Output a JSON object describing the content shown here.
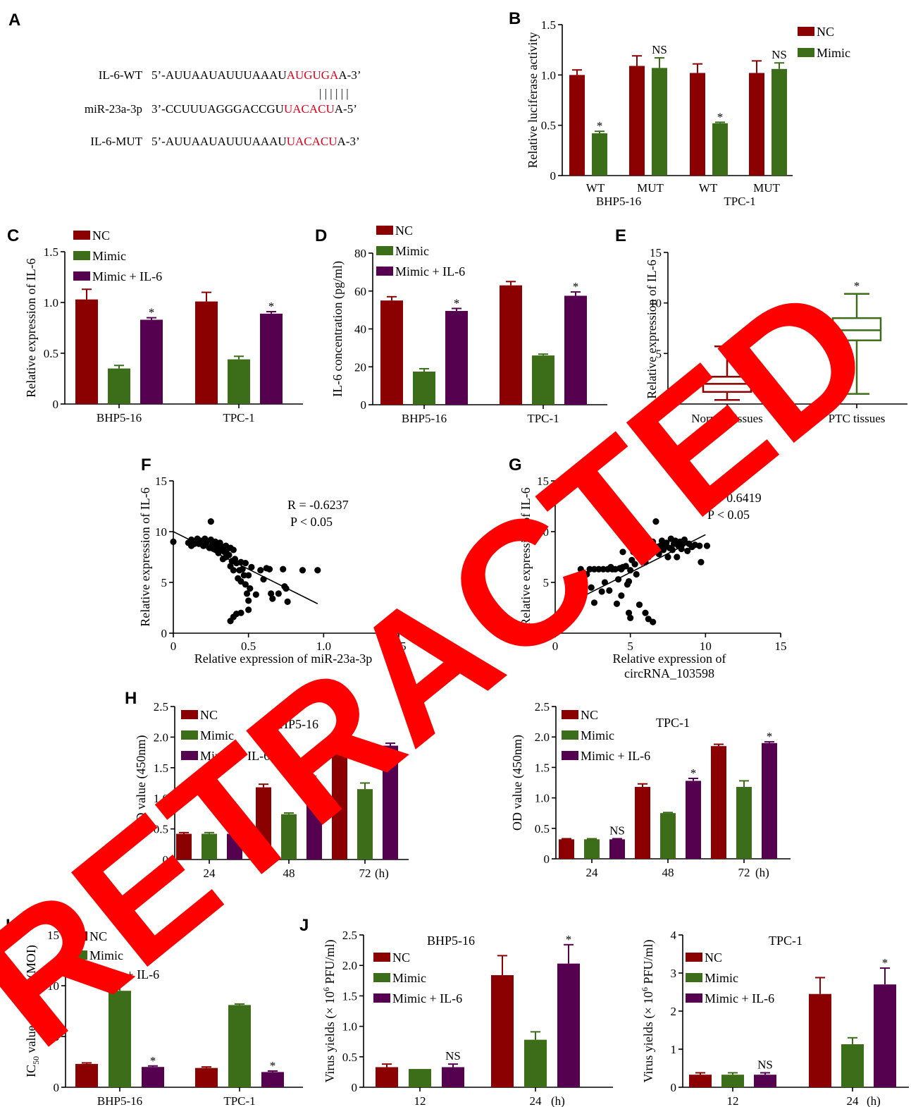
{
  "colors": {
    "NC": "#8b0000",
    "Mimic": "#3c6e1a",
    "Mimic + IL-6": "#560050",
    "box_normal": "#8b0000",
    "box_ptc": "#3c6e1a",
    "highlight": "#e0001b",
    "stamp": "#ff0000"
  },
  "panel_letters": [
    "A",
    "B",
    "C",
    "D",
    "E",
    "F",
    "G",
    "H",
    "I",
    "J"
  ],
  "sequences": {
    "rows": [
      {
        "label": "IL-6-WT",
        "prefix": "5’-AUUAAUAUUUAAAU",
        "highlight": "AUGUGA",
        "suffix": "A-3’"
      },
      {
        "label": "miR-23a-3p",
        "prefix": "3’-CCUUUAGGGACCGU",
        "highlight": "UACACU",
        "suffix": "A-5’"
      },
      {
        "label": "IL-6-MUT",
        "prefix": "5’-AUUAAUAUUUAAAU",
        "highlight": "UACACU",
        "suffix": "A-3’"
      }
    ],
    "pairing": "| | | | | |"
  },
  "stamp_text": "RETRACTED",
  "chart_data": [
    {
      "id": "B",
      "type": "bar",
      "ylabel": "Relative luciferase activity",
      "ylim": [
        0,
        1.5
      ],
      "yticks": [
        "0",
        "0.5",
        "1.0",
        "1.5"
      ],
      "categories": [
        "WT",
        "MUT",
        "WT",
        "MUT"
      ],
      "groups": [
        "BHP5-16",
        "TPC-1"
      ],
      "series": [
        {
          "name": "NC",
          "values": [
            1.0,
            1.09,
            1.02,
            1.02
          ],
          "errors": [
            0.05,
            0.1,
            0.09,
            0.12
          ]
        },
        {
          "name": "Mimic",
          "values": [
            0.42,
            1.07,
            0.52,
            1.06
          ],
          "errors": [
            0.02,
            0.1,
            0.01,
            0.06
          ]
        }
      ],
      "annotations": [
        "*",
        "NS",
        "*",
        "NS"
      ],
      "legend": "top-right"
    },
    {
      "id": "C",
      "type": "bar",
      "ylabel": "Relative expression of IL-6",
      "ylim": [
        0,
        1.5
      ],
      "yticks": [
        "0",
        "0.5",
        "1.0",
        "1.5"
      ],
      "categories": [
        "BHP5-16",
        "TPC-1"
      ],
      "series": [
        {
          "name": "NC",
          "values": [
            1.03,
            1.01
          ],
          "errors": [
            0.1,
            0.09
          ]
        },
        {
          "name": "Mimic",
          "values": [
            0.35,
            0.44
          ],
          "errors": [
            0.03,
            0.03
          ]
        },
        {
          "name": "Mimic + IL-6",
          "values": [
            0.83,
            0.89
          ],
          "errors": [
            0.02,
            0.02
          ]
        }
      ],
      "annotations": [
        "*",
        "*"
      ],
      "legend": "top-left"
    },
    {
      "id": "D",
      "type": "bar",
      "ylabel": "IL-6 concentration (pg/ml)",
      "ylim": [
        0,
        80
      ],
      "yticks": [
        "0",
        "20",
        "40",
        "60",
        "80"
      ],
      "categories": [
        "BHP5-16",
        "TPC-1"
      ],
      "series": [
        {
          "name": "NC",
          "values": [
            55,
            63
          ],
          "errors": [
            2,
            2
          ]
        },
        {
          "name": "Mimic",
          "values": [
            17.5,
            26
          ],
          "errors": [
            1.5,
            0.7
          ]
        },
        {
          "name": "Mimic + IL-6",
          "values": [
            49.5,
            57.5
          ],
          "errors": [
            1.3,
            2
          ]
        }
      ],
      "annotations": [
        "*",
        "*"
      ],
      "legend": "top-left"
    },
    {
      "id": "E",
      "type": "box",
      "ylabel": "Relative expression of IL-6",
      "ylim": [
        0,
        15
      ],
      "yticks": [
        "0",
        "5",
        "10",
        "15"
      ],
      "categories": [
        "Normal tissues",
        "PTC tissues"
      ],
      "boxes": [
        {
          "min": 0.4,
          "q1": 1.2,
          "median": 2.0,
          "q3": 2.7,
          "max": 5.7
        },
        {
          "min": 1.0,
          "q1": 6.3,
          "median": 7.3,
          "q3": 8.5,
          "max": 10.9
        }
      ],
      "annotations": [
        "",
        "*"
      ]
    },
    {
      "id": "F",
      "type": "scatter",
      "xlabel": "Relative expression of  miR-23a-3p",
      "ylabel": "Relative expression of IL-6",
      "xlim": [
        0,
        1.5
      ],
      "ylim": [
        0,
        15
      ],
      "xticks": [
        "0",
        "0.5",
        "1.0",
        "1.5"
      ],
      "yticks": [
        "0",
        "5",
        "10",
        "15"
      ],
      "stats": [
        "R = -0.6237",
        "P < 0.05"
      ],
      "fit": {
        "x": [
          0.0,
          0.96
        ],
        "y": [
          10.0,
          2.9
        ]
      },
      "points": [
        [
          0.0,
          9.0
        ],
        [
          0.1,
          8.9
        ],
        [
          0.12,
          9.2
        ],
        [
          0.12,
          8.6
        ],
        [
          0.14,
          8.8
        ],
        [
          0.16,
          9.3
        ],
        [
          0.17,
          8.8
        ],
        [
          0.18,
          9.1
        ],
        [
          0.2,
          8.6
        ],
        [
          0.21,
          9.3
        ],
        [
          0.22,
          8.9
        ],
        [
          0.24,
          8.4
        ],
        [
          0.25,
          9.2
        ],
        [
          0.25,
          11.0
        ],
        [
          0.26,
          8.7
        ],
        [
          0.27,
          8.3
        ],
        [
          0.28,
          9.0
        ],
        [
          0.29,
          8.5
        ],
        [
          0.3,
          8.7
        ],
        [
          0.3,
          7.9
        ],
        [
          0.31,
          8.9
        ],
        [
          0.32,
          8.2
        ],
        [
          0.33,
          8.5
        ],
        [
          0.33,
          7.3
        ],
        [
          0.34,
          8.0
        ],
        [
          0.35,
          8.6
        ],
        [
          0.35,
          7.5
        ],
        [
          0.36,
          8.3
        ],
        [
          0.37,
          7.7
        ],
        [
          0.38,
          8.4
        ],
        [
          0.38,
          6.6
        ],
        [
          0.39,
          7.1
        ],
        [
          0.4,
          8.2
        ],
        [
          0.4,
          6.2
        ],
        [
          0.41,
          7.3
        ],
        [
          0.42,
          6.9
        ],
        [
          0.43,
          5.4
        ],
        [
          0.44,
          6.2
        ],
        [
          0.45,
          7.0
        ],
        [
          0.45,
          5.1
        ],
        [
          0.46,
          6.3
        ],
        [
          0.47,
          5.7
        ],
        [
          0.48,
          4.8
        ],
        [
          0.48,
          6.9
        ],
        [
          0.49,
          3.9
        ],
        [
          0.5,
          3.2
        ],
        [
          0.5,
          2.3
        ],
        [
          0.5,
          5.7
        ],
        [
          0.51,
          4.4
        ],
        [
          0.52,
          6.5
        ],
        [
          0.45,
          2.0
        ],
        [
          0.42,
          1.9
        ],
        [
          0.4,
          1.6
        ],
        [
          0.38,
          1.2
        ],
        [
          0.55,
          3.8
        ],
        [
          0.58,
          6.2
        ],
        [
          0.6,
          5.3
        ],
        [
          0.62,
          6.4
        ],
        [
          0.64,
          6.3
        ],
        [
          0.65,
          3.9
        ],
        [
          0.66,
          3.4
        ],
        [
          0.7,
          3.9
        ],
        [
          0.73,
          6.3
        ],
        [
          0.74,
          4.6
        ],
        [
          0.75,
          4.4
        ],
        [
          0.76,
          3.1
        ],
        [
          0.86,
          6.2
        ],
        [
          0.96,
          6.2
        ]
      ]
    },
    {
      "id": "G",
      "type": "scatter",
      "xlabel": "Relative expression of circRNA_103598",
      "ylabel": "Relative expression of IL-6",
      "xlim": [
        0,
        15
      ],
      "ylim": [
        0,
        15
      ],
      "xticks": [
        "0",
        "5",
        "10",
        "15"
      ],
      "yticks": [
        "0",
        "5",
        "10",
        "15"
      ],
      "stats": [
        "R = 0.6419",
        "P < 0.05"
      ],
      "fit": {
        "x": [
          1.0,
          10.0
        ],
        "y": [
          3.0,
          9.7
        ]
      },
      "points": [
        [
          1.0,
          3.2
        ],
        [
          1.4,
          4.0
        ],
        [
          1.7,
          6.3
        ],
        [
          2.1,
          5.8
        ],
        [
          2.3,
          6.3
        ],
        [
          2.4,
          4.5
        ],
        [
          2.6,
          6.3
        ],
        [
          2.6,
          3.0
        ],
        [
          2.9,
          6.3
        ],
        [
          3.1,
          4.1
        ],
        [
          3.2,
          6.3
        ],
        [
          3.3,
          5.0
        ],
        [
          3.5,
          6.3
        ],
        [
          3.6,
          4.2
        ],
        [
          3.7,
          6.5
        ],
        [
          3.8,
          6.3
        ],
        [
          4.0,
          6.3
        ],
        [
          4.1,
          2.9
        ],
        [
          4.2,
          5.3
        ],
        [
          4.3,
          6.4
        ],
        [
          4.4,
          6.3
        ],
        [
          4.4,
          3.7
        ],
        [
          4.5,
          6.5
        ],
        [
          4.5,
          8.0
        ],
        [
          4.7,
          6.6
        ],
        [
          4.8,
          4.8
        ],
        [
          4.9,
          5.1
        ],
        [
          4.9,
          2.0
        ],
        [
          5.0,
          6.2
        ],
        [
          5.0,
          1.5
        ],
        [
          5.1,
          7.2
        ],
        [
          5.2,
          8.0
        ],
        [
          5.3,
          6.8
        ],
        [
          5.4,
          5.8
        ],
        [
          5.5,
          7.6
        ],
        [
          5.6,
          8.2
        ],
        [
          5.6,
          2.8
        ],
        [
          5.8,
          7.5
        ],
        [
          5.9,
          8.4
        ],
        [
          6.0,
          7.0
        ],
        [
          6.0,
          2.0
        ],
        [
          6.1,
          8.0
        ],
        [
          6.2,
          7.5
        ],
        [
          6.2,
          1.4
        ],
        [
          6.3,
          8.4
        ],
        [
          6.4,
          7.8
        ],
        [
          6.5,
          9.0
        ],
        [
          6.5,
          1.1
        ],
        [
          6.6,
          8.2
        ],
        [
          6.7,
          11.0
        ],
        [
          6.8,
          8.5
        ],
        [
          6.9,
          7.8
        ],
        [
          7.0,
          8.6
        ],
        [
          7.1,
          9.1
        ],
        [
          7.2,
          8.2
        ],
        [
          7.3,
          8.6
        ],
        [
          7.4,
          8.9
        ],
        [
          7.5,
          7.5
        ],
        [
          7.6,
          8.4
        ],
        [
          7.7,
          9.3
        ],
        [
          7.8,
          8.2
        ],
        [
          7.9,
          8.8
        ],
        [
          8.0,
          9.1
        ],
        [
          8.1,
          7.5
        ],
        [
          8.2,
          8.6
        ],
        [
          8.3,
          9.0
        ],
        [
          8.4,
          8.3
        ],
        [
          8.5,
          8.8
        ],
        [
          8.6,
          9.2
        ],
        [
          8.8,
          8.1
        ],
        [
          8.9,
          8.8
        ],
        [
          9.1,
          8.5
        ],
        [
          9.3,
          8.7
        ],
        [
          9.6,
          8.6
        ],
        [
          9.7,
          7.0
        ],
        [
          10.1,
          8.6
        ]
      ]
    },
    {
      "id": "H-BHP5-16",
      "type": "bar",
      "title": "BHP5-16",
      "ylabel": "OD value (450nm)",
      "ylim": [
        0,
        2.5
      ],
      "yticks": [
        "0",
        "0.5",
        "1.0",
        "1.5",
        "2.0",
        "2.5"
      ],
      "categories": [
        "24",
        "48",
        "72"
      ],
      "xunit": "(h)",
      "series": [
        {
          "name": "NC",
          "values": [
            0.42,
            1.18,
            1.78
          ],
          "errors": [
            0.02,
            0.05,
            0.05
          ]
        },
        {
          "name": "Mimic",
          "values": [
            0.42,
            0.74,
            1.15
          ],
          "errors": [
            0.02,
            0.02,
            0.1
          ]
        },
        {
          "name": "Mimic + IL-6",
          "values": [
            0.42,
            1.19,
            1.86
          ],
          "errors": [
            0.02,
            0.05,
            0.04
          ]
        }
      ],
      "annotations": [
        "NS",
        "*",
        ""
      ],
      "legend": "top-left"
    },
    {
      "id": "H-TPC-1",
      "type": "bar",
      "title": "TPC-1",
      "ylabel": "OD value (450nm)",
      "ylim": [
        0,
        2.5
      ],
      "yticks": [
        "0",
        "0.5",
        "1.0",
        "1.5",
        "2.0",
        "2.5"
      ],
      "categories": [
        "24",
        "48",
        "72"
      ],
      "xunit": "(h)",
      "series": [
        {
          "name": "NC",
          "values": [
            0.32,
            1.18,
            1.85
          ],
          "errors": [
            0.01,
            0.05,
            0.03
          ]
        },
        {
          "name": "Mimic",
          "values": [
            0.32,
            0.75,
            1.18
          ],
          "errors": [
            0.01,
            0.01,
            0.1
          ]
        },
        {
          "name": "Mimic + IL-6",
          "values": [
            0.32,
            1.28,
            1.9
          ],
          "errors": [
            0.01,
            0.04,
            0.02
          ]
        }
      ],
      "annotations": [
        "NS",
        "*",
        "*"
      ],
      "legend": "top-left"
    },
    {
      "id": "I",
      "type": "bar",
      "ylabel": "IC50 value of OVV (MOI)",
      "ylim": [
        0,
        15
      ],
      "yticks": [
        "0",
        "5",
        "10",
        "15"
      ],
      "categories": [
        "BHP5-16",
        "TPC-1"
      ],
      "series": [
        {
          "name": "NC",
          "values": [
            2.3,
            1.9
          ],
          "errors": [
            0.1,
            0.1
          ]
        },
        {
          "name": "Mimic",
          "values": [
            9.5,
            8.1
          ],
          "errors": [
            0.6,
            0.1
          ]
        },
        {
          "name": "Mimic + IL-6",
          "values": [
            2.0,
            1.5
          ],
          "errors": [
            0.1,
            0.1
          ]
        }
      ],
      "annotations": [
        "*",
        "*"
      ],
      "legend": "top-left"
    },
    {
      "id": "J-BHP5-16",
      "type": "bar",
      "title": "BHP5-16",
      "ylabel": "Virus yields (× 10⁶ PFU/ml)",
      "ylim": [
        0,
        2.5
      ],
      "yticks": [
        "0",
        "0.5",
        "1.0",
        "1.5",
        "2.0",
        "2.5"
      ],
      "categories": [
        "12",
        "24"
      ],
      "xunit": "(h)",
      "series": [
        {
          "name": "NC",
          "values": [
            0.33,
            1.84
          ],
          "errors": [
            0.05,
            0.32
          ]
        },
        {
          "name": "Mimic",
          "values": [
            0.3,
            0.78
          ],
          "errors": [
            0.0,
            0.13
          ]
        },
        {
          "name": "Mimic + IL-6",
          "values": [
            0.33,
            2.03
          ],
          "errors": [
            0.05,
            0.31
          ]
        }
      ],
      "annotations": [
        "NS",
        "*"
      ],
      "legend": "top-left"
    },
    {
      "id": "J-TPC-1",
      "type": "bar",
      "title": "TPC-1",
      "ylabel": "Virus yields (× 10⁶ PFU/ml)",
      "ylim": [
        0,
        4
      ],
      "yticks": [
        "0",
        "1",
        "2",
        "3",
        "4"
      ],
      "categories": [
        "12",
        "24"
      ],
      "xunit": "(h)",
      "series": [
        {
          "name": "NC",
          "values": [
            0.33,
            2.45
          ],
          "errors": [
            0.05,
            0.43
          ]
        },
        {
          "name": "Mimic",
          "values": [
            0.33,
            1.13
          ],
          "errors": [
            0.05,
            0.17
          ]
        },
        {
          "name": "Mimic + IL-6",
          "values": [
            0.33,
            2.7
          ],
          "errors": [
            0.05,
            0.43
          ]
        }
      ],
      "annotations": [
        "NS",
        "*"
      ],
      "legend": "top-left"
    }
  ]
}
